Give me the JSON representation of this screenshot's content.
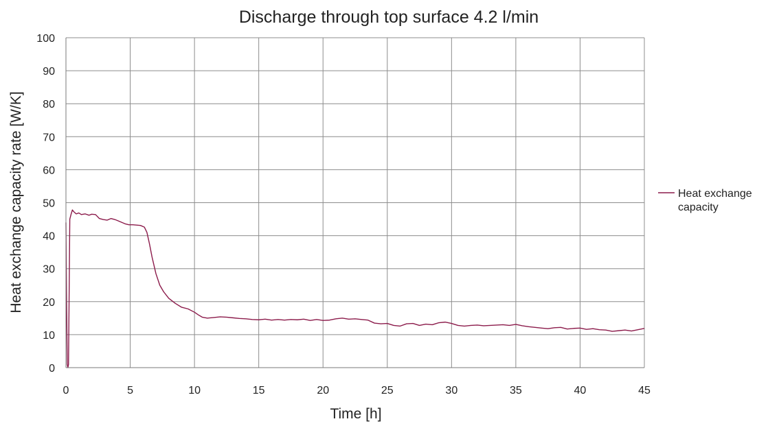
{
  "chart_data": {
    "type": "line",
    "title": "Discharge through top surface 4.2 l/min",
    "xlabel": "Time [h]",
    "ylabel": "Heat exchange capacity rate [W/K]",
    "xlim": [
      0,
      45
    ],
    "ylim": [
      0,
      100
    ],
    "xticks": [
      0,
      5,
      10,
      15,
      20,
      25,
      30,
      35,
      40,
      45
    ],
    "yticks": [
      0,
      10,
      20,
      30,
      40,
      50,
      60,
      70,
      80,
      90,
      100
    ],
    "xtick_labels": [
      "0",
      "5",
      "10",
      "15",
      "20",
      "25",
      "30",
      "35",
      "40",
      "45"
    ],
    "ytick_labels": [
      "0",
      "10",
      "20",
      "30",
      "40",
      "50",
      "60",
      "70",
      "80",
      "90",
      "100"
    ],
    "grid": true,
    "legend_position": "right",
    "series": [
      {
        "name": "Heat exchange capacity",
        "color": "#8B1A4A",
        "x": [
          0,
          0.05,
          0.1,
          0.15,
          0.2,
          0.3,
          0.4,
          0.5,
          0.6,
          0.8,
          1.0,
          1.2,
          1.5,
          1.8,
          2.0,
          2.3,
          2.6,
          2.9,
          3.2,
          3.5,
          3.8,
          4.0,
          4.3,
          4.6,
          4.9,
          5.2,
          5.5,
          5.8,
          6.1,
          6.3,
          6.5,
          6.7,
          7.0,
          7.3,
          7.6,
          8.0,
          8.5,
          9.0,
          9.5,
          10.0,
          10.3,
          10.6,
          11.0,
          11.5,
          12.0,
          12.5,
          13.0,
          13.5,
          14.0,
          14.5,
          15.0,
          15.5,
          16.0,
          16.5,
          17.0,
          17.5,
          18.0,
          18.5,
          19.0,
          19.5,
          20.0,
          20.5,
          21.0,
          21.5,
          22.0,
          22.5,
          23.0,
          23.5,
          24.0,
          24.5,
          25.0,
          25.5,
          26.0,
          26.5,
          27.0,
          27.5,
          28.0,
          28.5,
          29.0,
          29.5,
          30.0,
          30.5,
          31.0,
          31.5,
          32.0,
          32.5,
          33.0,
          33.5,
          34.0,
          34.5,
          35.0,
          35.5,
          36.0,
          36.5,
          37.0,
          37.5,
          38.0,
          38.5,
          39.0,
          39.5,
          40.0,
          40.5,
          41.0,
          41.5,
          42.0,
          42.5,
          43.0,
          43.5,
          44.0,
          44.5,
          45.0
        ],
        "y": [
          44,
          20,
          1,
          0,
          1,
          45,
          46.5,
          47.8,
          47.3,
          46.6,
          46.9,
          46.4,
          46.6,
          46.2,
          46.5,
          46.4,
          45.2,
          44.9,
          44.7,
          45.2,
          44.9,
          44.6,
          44.1,
          43.6,
          43.3,
          43.3,
          43.2,
          43.1,
          42.6,
          41.0,
          37.5,
          33.5,
          28.5,
          25.0,
          23.0,
          21.0,
          19.5,
          18.3,
          17.8,
          16.8,
          16.0,
          15.3,
          15.0,
          15.2,
          15.4,
          15.3,
          15.1,
          14.9,
          14.8,
          14.6,
          14.5,
          14.7,
          14.4,
          14.6,
          14.4,
          14.6,
          14.5,
          14.7,
          14.3,
          14.6,
          14.3,
          14.4,
          14.8,
          15.0,
          14.7,
          14.8,
          14.6,
          14.4,
          13.5,
          13.3,
          13.4,
          12.8,
          12.6,
          13.3,
          13.4,
          12.8,
          13.2,
          13.0,
          13.6,
          13.8,
          13.4,
          12.8,
          12.6,
          12.8,
          12.9,
          12.7,
          12.8,
          12.9,
          13.0,
          12.8,
          13.1,
          12.7,
          12.4,
          12.2,
          12.0,
          11.8,
          12.1,
          12.2,
          11.7,
          11.9,
          12.0,
          11.6,
          11.8,
          11.5,
          11.4,
          11.0,
          11.2,
          11.4,
          11.1,
          11.5,
          11.9
        ]
      }
    ]
  }
}
